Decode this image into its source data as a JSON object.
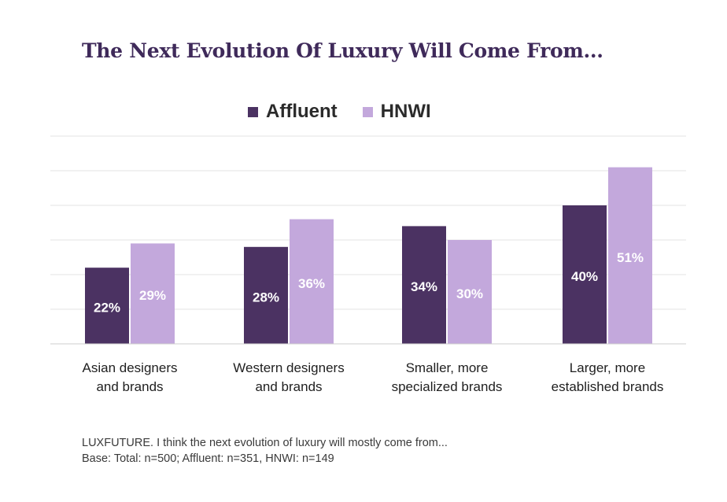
{
  "chart_data": {
    "type": "bar",
    "title": "The Next Evolution Of Luxury Will Come From...",
    "categories": [
      [
        "Asian designers",
        "and brands"
      ],
      [
        "Western designers",
        "and brands"
      ],
      [
        "Smaller, more",
        "specialized brands"
      ],
      [
        "Larger, more",
        "established brands"
      ]
    ],
    "series": [
      {
        "name": "Affluent",
        "values": [
          22,
          28,
          34,
          40
        ],
        "labels": [
          "22%",
          "28%",
          "34%",
          "40%"
        ],
        "color": "#4b3262"
      },
      {
        "name": "HNWI",
        "values": [
          29,
          36,
          30,
          51
        ],
        "labels": [
          "29%",
          "36%",
          "30%",
          "51%"
        ],
        "color": "#c3a8dc"
      }
    ],
    "ylim": [
      0,
      60
    ],
    "grid": true,
    "legend_position": "top-center",
    "data_label_color": "#ffffff",
    "grid_color": "#e3e3e3",
    "axis_color": "#cccccc"
  },
  "footnote": {
    "line1": "LUXFUTURE. I think the next evolution of luxury will mostly come from...",
    "line2": "Base: Total: n=500; Affluent: n=351, HNWI: n=149"
  }
}
